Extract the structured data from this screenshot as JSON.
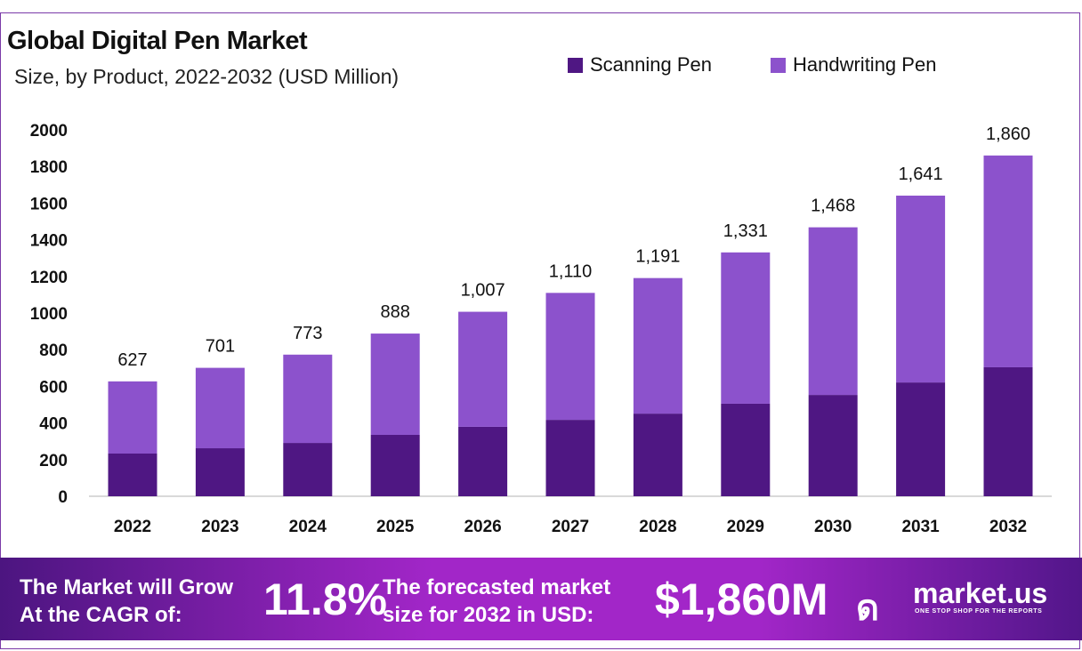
{
  "chart_data": {
    "type": "bar",
    "stacked": true,
    "title": "Global Digital Pen Market",
    "subtitle": "Size, by Product, 2022-2032 (USD Million)",
    "categories": [
      "2022",
      "2023",
      "2024",
      "2025",
      "2026",
      "2027",
      "2028",
      "2029",
      "2030",
      "2031",
      "2032"
    ],
    "series": [
      {
        "name": "Scanning Pen",
        "color": "#4f1783",
        "values": [
          233,
          262,
          291,
          335,
          379,
          417,
          451,
          505,
          553,
          621,
          704
        ]
      },
      {
        "name": "Handwriting Pen",
        "color": "#8c52cc",
        "values": [
          394,
          439,
          482,
          553,
          628,
          693,
          740,
          826,
          915,
          1020,
          1156
        ]
      }
    ],
    "totals": [
      627,
      701,
      773,
      888,
      1007,
      1110,
      1191,
      1331,
      1468,
      1641,
      1860
    ],
    "total_labels": [
      "627",
      "701",
      "773",
      "888",
      "1,007",
      "1,110",
      "1,191",
      "1,331",
      "1,468",
      "1,641",
      "1,860"
    ],
    "ylim": [
      0,
      2000
    ],
    "yticks": [
      "0",
      "200",
      "400",
      "600",
      "800",
      "1000",
      "1200",
      "1400",
      "1600",
      "1800",
      "2000"
    ],
    "grid": false,
    "legend": "top-right"
  },
  "banner": {
    "cagr_text_1": "The Market will Grow",
    "cagr_text_2": "At the CAGR of:",
    "cagr_value": "11.8%",
    "forecast_text_1": "The forecasted market",
    "forecast_text_2": "size for 2032 in USD:",
    "forecast_value": "$1,860M",
    "brand": "market.us",
    "tagline": "ONE STOP SHOP FOR THE REPORTS"
  }
}
